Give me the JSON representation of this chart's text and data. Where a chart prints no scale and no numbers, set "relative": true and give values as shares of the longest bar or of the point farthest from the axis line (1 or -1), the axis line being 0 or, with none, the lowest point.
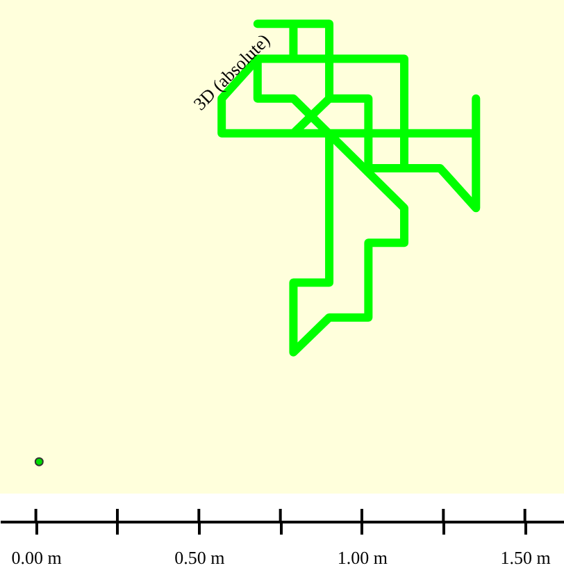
{
  "chart_data": {
    "type": "line",
    "relative": true,
    "tick_labels": "x",
    "grid": false,
    "annotations": [
      "3D (absolute)"
    ],
    "xlim": [
      -0.11,
      1.62
    ],
    "xticks": [
      {
        "value": 0,
        "label": "0.00 m"
      },
      {
        "value": 0.25,
        "label": null
      },
      {
        "value": 0.5,
        "label": "0.50 m"
      },
      {
        "value": 0.75,
        "label": null
      },
      {
        "value": 1.0,
        "label": "1.00 m"
      },
      {
        "value": 1.25,
        "label": null
      },
      {
        "value": 1.5,
        "label": "1.50 m"
      }
    ],
    "series": [
      {
        "type": "line",
        "color": "#00ff00",
        "line_style": "solid",
        "x": [
          0.79,
          0.79,
          0.68,
          0.9,
          0.9,
          1.02,
          1.02,
          1.24,
          1.35,
          1.35,
          1.35,
          0.57,
          0.57,
          0.68,
          0.68,
          0.79,
          1.13,
          1.13,
          1.02,
          1.02,
          0.9,
          0.79,
          0.79,
          0.9,
          0.9,
          0.79,
          0.9,
          0.9,
          0.68,
          1.13,
          1.13
        ],
        "values": [
          0.93,
          1.0,
          1.0,
          1.0,
          0.85,
          0.85,
          0.71,
          0.71,
          0.63,
          0.85,
          0.78,
          0.78,
          0.85,
          0.93,
          0.85,
          0.85,
          0.63,
          0.56,
          0.56,
          0.41,
          0.41,
          0.34,
          0.48,
          0.48,
          0.78,
          0.78,
          0.85,
          0.93,
          0.93,
          0.93,
          0.71
        ]
      },
      {
        "type": "scatter",
        "color": "#00dd00",
        "marker": "circle",
        "x": [
          0.01
        ],
        "values": [
          0.12
        ]
      }
    ]
  }
}
